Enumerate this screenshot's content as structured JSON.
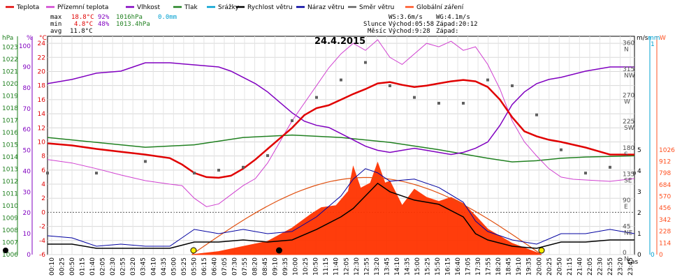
{
  "legend": [
    {
      "label": "Teplota",
      "color": "#e00000"
    },
    {
      "label": "Přízemní teplota",
      "color": "#d040d0"
    },
    {
      "label": "Vlhkost",
      "color": "#8000c0"
    },
    {
      "label": "Tlak",
      "color": "#208020"
    },
    {
      "label": "Srážky",
      "color": "#00a0d0"
    },
    {
      "label": "Rychlost větru",
      "color": "#000000"
    },
    {
      "label": "Náraz větru",
      "color": "#0000a0"
    },
    {
      "label": "Směr větru",
      "color": "#606060"
    },
    {
      "label": "Globální záření",
      "color": "#ff5020"
    }
  ],
  "stats": {
    "max": {
      "label": "max",
      "temp": "18.8°C",
      "hum": "92%",
      "press": "1016hPa",
      "rain": "0.0mm"
    },
    "min": {
      "label": "min",
      "temp": "4.8°C",
      "hum": "48%",
      "press": "1013.4hPa"
    },
    "avg": {
      "label": "avg",
      "temp": "11.8°C"
    }
  },
  "wind_info": {
    "ws": "WS:3.6m/s",
    "wg": "WG:4.1m/s"
  },
  "sun_info": {
    "label": "Slunce",
    "rise": "Východ:05:58",
    "set": "Západ:20:12"
  },
  "moon_info": {
    "label": "Měsíc",
    "rise": "Východ:9:28",
    "set": "Západ:"
  },
  "date": "24.4.2015",
  "time_label": "čas",
  "colors": {
    "temp": "#e00000",
    "ground": "#d040d0",
    "hum": "#8000c0",
    "press": "#208020",
    "rain": "#00a0d0",
    "wind": "#000000",
    "gust": "#0000a0",
    "dir": "#606060",
    "solar": "#ff3300",
    "theoretical_solar": "#e05010"
  },
  "chart_data": {
    "type": "line",
    "title": "24.4.2015",
    "xlabel": "čas",
    "x_ticks": [
      "00:10",
      "00:25",
      "00:50",
      "01:15",
      "01:40",
      "02:05",
      "02:30",
      "02:55",
      "03:20",
      "03:45",
      "04:10",
      "04:35",
      "05:00",
      "05:25",
      "05:50",
      "06:15",
      "06:40",
      "07:05",
      "07:30",
      "07:55",
      "08:20",
      "08:45",
      "09:10",
      "09:35",
      "10:00",
      "10:25",
      "10:50",
      "11:15",
      "11:40",
      "12:05",
      "12:30",
      "12:55",
      "13:20",
      "13:45",
      "14:10",
      "14:35",
      "15:00",
      "15:25",
      "15:50",
      "16:15",
      "16:40",
      "17:05",
      "17:30",
      "17:55",
      "18:20",
      "18:45",
      "19:10",
      "19:35",
      "20:00",
      "20:25",
      "20:50",
      "21:15",
      "21:40",
      "22:05",
      "22:30",
      "22:55",
      "23:20",
      "23:45"
    ],
    "axes": {
      "pressure": {
        "label": "hPa",
        "ticks": [
          1006,
          1007,
          1008,
          1009,
          1010,
          1011,
          1012,
          1013,
          1014,
          1015,
          1016,
          1017,
          1018,
          1019,
          1020,
          1021,
          1022,
          1023
        ]
      },
      "humidity": {
        "label": "%",
        "ticks": [
          0,
          10,
          20,
          30,
          40,
          50,
          60,
          70,
          80,
          90,
          100
        ]
      },
      "temperature": {
        "label": "°C",
        "ticks": [
          -6,
          -4,
          -2,
          0,
          2,
          4,
          6,
          8,
          10,
          12,
          14,
          16,
          18,
          20,
          22,
          24
        ]
      },
      "wind_speed": {
        "label": "m/s",
        "ticks": [
          0,
          1,
          2,
          3,
          4,
          5
        ]
      },
      "precipitation": {
        "label": "mm",
        "ticks": [
          0,
          1
        ]
      },
      "radiation": {
        "label": "W",
        "ticks": [
          0,
          114,
          228,
          342,
          456,
          570,
          684,
          798,
          912,
          1026
        ]
      },
      "direction": {
        "ticks": [
          "0 N",
          "45 NE",
          "90 E",
          "135 SE",
          "180 S",
          "225 SW",
          "270 W",
          "315 NW",
          "360 N"
        ]
      }
    },
    "grid": true,
    "series": [
      {
        "name": "Teplota",
        "unit": "°C",
        "points": [
          [
            0,
            9.8
          ],
          [
            1,
            9.5
          ],
          [
            2,
            9
          ],
          [
            3,
            8.6
          ],
          [
            4,
            8.2
          ],
          [
            5,
            7.7
          ],
          [
            5.5,
            6.8
          ],
          [
            6,
            5.6
          ],
          [
            6.5,
            5
          ],
          [
            7,
            4.9
          ],
          [
            7.5,
            5.2
          ],
          [
            8,
            6.2
          ],
          [
            8.5,
            7.5
          ],
          [
            9,
            9
          ],
          [
            9.5,
            10.5
          ],
          [
            10,
            12
          ],
          [
            10.5,
            13.8
          ],
          [
            11,
            14.8
          ],
          [
            11.5,
            15.2
          ],
          [
            12,
            16
          ],
          [
            12.5,
            16.8
          ],
          [
            13,
            17.5
          ],
          [
            13.5,
            18.3
          ],
          [
            14,
            18.5
          ],
          [
            14.5,
            18.1
          ],
          [
            15,
            17.8
          ],
          [
            15.5,
            18
          ],
          [
            16,
            18.3
          ],
          [
            16.5,
            18.6
          ],
          [
            17,
            18.8
          ],
          [
            17.5,
            18.6
          ],
          [
            18,
            17.8
          ],
          [
            18.5,
            16
          ],
          [
            19,
            13.5
          ],
          [
            19.5,
            11.5
          ],
          [
            20,
            10.8
          ],
          [
            20.5,
            10.3
          ],
          [
            21,
            10
          ],
          [
            21.5,
            9.6
          ],
          [
            22,
            9.2
          ],
          [
            22.5,
            8.7
          ],
          [
            23,
            8.2
          ],
          [
            24,
            8.2
          ]
        ]
      },
      {
        "name": "Přízemní teplota",
        "unit": "°C",
        "points": [
          [
            0,
            7.5
          ],
          [
            1,
            7
          ],
          [
            2,
            6.2
          ],
          [
            3,
            5.3
          ],
          [
            4,
            4.5
          ],
          [
            5,
            4
          ],
          [
            5.5,
            3.8
          ],
          [
            6,
            2
          ],
          [
            6.5,
            0.8
          ],
          [
            7,
            1.2
          ],
          [
            7.5,
            2.5
          ],
          [
            8,
            3.8
          ],
          [
            8.5,
            4.8
          ],
          [
            9,
            7
          ],
          [
            9.5,
            10
          ],
          [
            10,
            13
          ],
          [
            10.5,
            15.5
          ],
          [
            11,
            18
          ],
          [
            11.5,
            20.5
          ],
          [
            12,
            22.5
          ],
          [
            12.5,
            24
          ],
          [
            13,
            23
          ],
          [
            13.5,
            24.5
          ],
          [
            14,
            22
          ],
          [
            14.5,
            21
          ],
          [
            15,
            22.5
          ],
          [
            15.5,
            24
          ],
          [
            16,
            23.5
          ],
          [
            16.5,
            24.3
          ],
          [
            17,
            23
          ],
          [
            17.5,
            23.5
          ],
          [
            18,
            21
          ],
          [
            18.5,
            17.5
          ],
          [
            19,
            13
          ],
          [
            19.5,
            10
          ],
          [
            20,
            8
          ],
          [
            20.5,
            6.2
          ],
          [
            21,
            5
          ],
          [
            21.5,
            4.7
          ],
          [
            22,
            4.6
          ],
          [
            22.5,
            4.5
          ],
          [
            23,
            4.4
          ],
          [
            24,
            4.8
          ]
        ]
      },
      {
        "name": "Vlhkost",
        "unit": "%",
        "points": [
          [
            0,
            82
          ],
          [
            1,
            84
          ],
          [
            2,
            87
          ],
          [
            3,
            88
          ],
          [
            3.5,
            90
          ],
          [
            4,
            92
          ],
          [
            5,
            92
          ],
          [
            6,
            91
          ],
          [
            7,
            90
          ],
          [
            7.5,
            88
          ],
          [
            8,
            85
          ],
          [
            8.5,
            82
          ],
          [
            9,
            78
          ],
          [
            9.5,
            73
          ],
          [
            10,
            68
          ],
          [
            10.5,
            64
          ],
          [
            11,
            62
          ],
          [
            11.5,
            61
          ],
          [
            12,
            58
          ],
          [
            12.5,
            55
          ],
          [
            13,
            52
          ],
          [
            13.5,
            50
          ],
          [
            14,
            49
          ],
          [
            14.5,
            50
          ],
          [
            15,
            51
          ],
          [
            15.5,
            50
          ],
          [
            16,
            49
          ],
          [
            16.5,
            48
          ],
          [
            17,
            49
          ],
          [
            17.5,
            51
          ],
          [
            18,
            54
          ],
          [
            18.5,
            62
          ],
          [
            19,
            72
          ],
          [
            19.5,
            78
          ],
          [
            20,
            82
          ],
          [
            20.5,
            84
          ],
          [
            21,
            85
          ],
          [
            22,
            88
          ],
          [
            23,
            90
          ],
          [
            24,
            90
          ]
        ]
      },
      {
        "name": "Tlak",
        "unit": "hPa",
        "points": [
          [
            0,
            1015.6
          ],
          [
            2,
            1015.2
          ],
          [
            4,
            1014.8
          ],
          [
            5,
            1014.9
          ],
          [
            6,
            1015.0
          ],
          [
            7,
            1015.3
          ],
          [
            8,
            1015.6
          ],
          [
            10,
            1015.8
          ],
          [
            12,
            1015.6
          ],
          [
            14,
            1015.2
          ],
          [
            16,
            1014.6
          ],
          [
            18,
            1013.9
          ],
          [
            19,
            1013.6
          ],
          [
            20,
            1013.7
          ],
          [
            21,
            1013.9
          ],
          [
            22,
            1014.0
          ],
          [
            24,
            1014.1
          ]
        ]
      },
      {
        "name": "Rychlost větru",
        "unit": "m/s",
        "points": [
          [
            0,
            0.5
          ],
          [
            1,
            0.5
          ],
          [
            2,
            0.3
          ],
          [
            3,
            0.3
          ],
          [
            4,
            0.3
          ],
          [
            5,
            0.3
          ],
          [
            6,
            0.6
          ],
          [
            7,
            0.6
          ],
          [
            8,
            0.7
          ],
          [
            9,
            0.6
          ],
          [
            10,
            0.7
          ],
          [
            11,
            1.2
          ],
          [
            12,
            1.8
          ],
          [
            12.5,
            2.2
          ],
          [
            13,
            2.8
          ],
          [
            13.5,
            3.4
          ],
          [
            14,
            3
          ],
          [
            15,
            2.6
          ],
          [
            16,
            2.4
          ],
          [
            17,
            1.8
          ],
          [
            17.5,
            1
          ],
          [
            18,
            0.7
          ],
          [
            19,
            0.4
          ],
          [
            20,
            0.3
          ],
          [
            21,
            0.6
          ],
          [
            22,
            0.6
          ],
          [
            23,
            0.7
          ],
          [
            24,
            0.7
          ]
        ]
      },
      {
        "name": "Náraz větru",
        "unit": "m/s",
        "points": [
          [
            0,
            0.9
          ],
          [
            1,
            0.8
          ],
          [
            2,
            0.4
          ],
          [
            3,
            0.5
          ],
          [
            4,
            0.4
          ],
          [
            5,
            0.4
          ],
          [
            6,
            1.2
          ],
          [
            7,
            1.0
          ],
          [
            8,
            1.2
          ],
          [
            9,
            1.0
          ],
          [
            10,
            1.1
          ],
          [
            11,
            1.8
          ],
          [
            12,
            2.8
          ],
          [
            12.5,
            3.6
          ],
          [
            13,
            4.1
          ],
          [
            13.5,
            3.9
          ],
          [
            14,
            3.5
          ],
          [
            15,
            3.6
          ],
          [
            16,
            3.2
          ],
          [
            17,
            2.5
          ],
          [
            17.5,
            1.6
          ],
          [
            18,
            1.1
          ],
          [
            19,
            0.7
          ],
          [
            20,
            0.5
          ],
          [
            21,
            1.0
          ],
          [
            22,
            1.0
          ],
          [
            23,
            1.2
          ],
          [
            24,
            1.0
          ]
        ]
      },
      {
        "name": "Směr větru",
        "unit": "°",
        "points": [
          [
            0,
            140
          ],
          [
            2,
            140
          ],
          [
            4,
            160
          ],
          [
            6,
            140
          ],
          [
            7,
            145
          ],
          [
            8,
            150
          ],
          [
            9,
            170
          ],
          [
            10,
            230
          ],
          [
            11,
            270
          ],
          [
            12,
            300
          ],
          [
            13,
            330
          ],
          [
            14,
            290
          ],
          [
            15,
            270
          ],
          [
            16,
            260
          ],
          [
            17,
            260
          ],
          [
            18,
            300
          ],
          [
            19,
            290
          ],
          [
            20,
            240
          ],
          [
            21,
            180
          ],
          [
            22,
            140
          ],
          [
            23,
            150
          ],
          [
            24,
            140
          ]
        ]
      },
      {
        "name": "Globální záření",
        "unit": "W",
        "points": [
          [
            5.9,
            0
          ],
          [
            7,
            30
          ],
          [
            8,
            80
          ],
          [
            9,
            130
          ],
          [
            10,
            260
          ],
          [
            10.8,
            400
          ],
          [
            11.2,
            460
          ],
          [
            11.8,
            480
          ],
          [
            12.3,
            620
          ],
          [
            12.5,
            860
          ],
          [
            12.8,
            650
          ],
          [
            13.2,
            700
          ],
          [
            13.5,
            900
          ],
          [
            13.8,
            700
          ],
          [
            14,
            720
          ],
          [
            14.5,
            480
          ],
          [
            15,
            640
          ],
          [
            15.5,
            560
          ],
          [
            16,
            520
          ],
          [
            16.5,
            560
          ],
          [
            17,
            500
          ],
          [
            17.5,
            380
          ],
          [
            18,
            250
          ],
          [
            19,
            110
          ],
          [
            20,
            20
          ],
          [
            20.2,
            0
          ]
        ]
      }
    ],
    "annotations": [
      "24.4.2015"
    ]
  }
}
